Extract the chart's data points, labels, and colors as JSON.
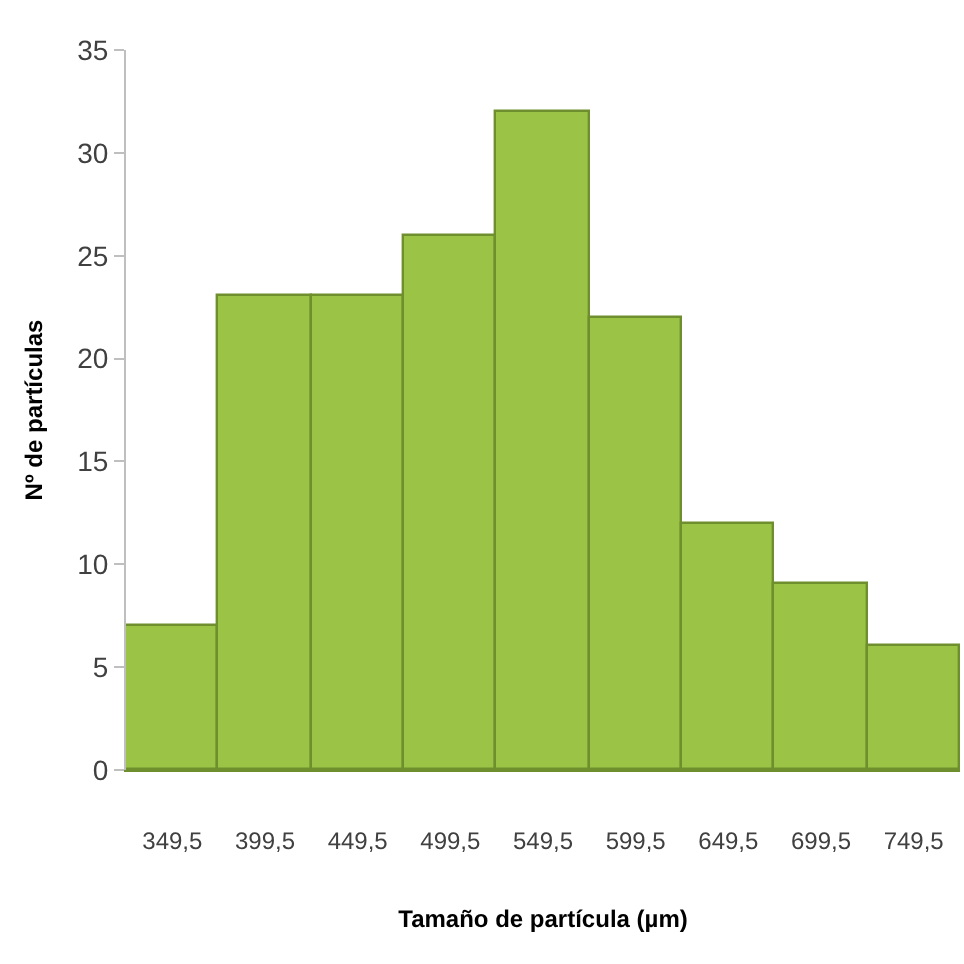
{
  "chart_data": {
    "type": "bar",
    "xlabel": "Tamaño de partícula (µm)",
    "ylabel": "Nº de partículas",
    "categories": [
      "349,5",
      "399,5",
      "449,5",
      "499,5",
      "549,5",
      "599,5",
      "649,5",
      "699,5",
      "749,5"
    ],
    "values": [
      7,
      23,
      23,
      26,
      32,
      22,
      12,
      9,
      6
    ],
    "color": "#9bc447",
    "ylim": [
      0,
      35
    ],
    "yticks": [
      0,
      5,
      10,
      15,
      20,
      25,
      30,
      35
    ]
  }
}
